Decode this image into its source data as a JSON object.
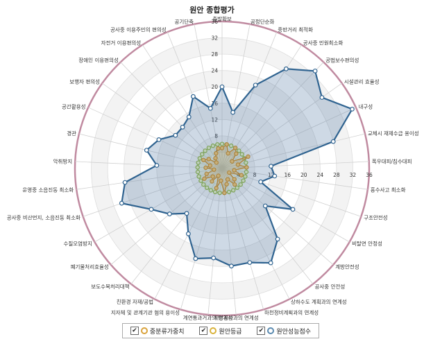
{
  "chart_data": {
    "type": "radar",
    "title": "원안 종합평가",
    "scale": {
      "max": 36,
      "step": 4,
      "ticks": [
        "4",
        "8",
        "12",
        "16",
        "20",
        "24",
        "28",
        "32",
        "36"
      ]
    },
    "axes": [
      "출발확보",
      "공정단순화",
      "중반거리 최적화",
      "공사중 민원최소화",
      "공법보수편의성",
      "시설관리 효율성",
      "내구성",
      "교체시 재제수급 용이성",
      "폭우대피/침수대피",
      "홍수사고 최소화",
      "구조안전성",
      "비탈면 안정성",
      "계방안전성",
      "공사중 안전성",
      "상하수도 계획과의 연계성",
      "하천정비계획과의 연계성",
      "제방공사과의 연계성",
      "계연통과거과의 연계성",
      "지자체 및 관계기관 협의 용이성",
      "친환경 자재/공법",
      "보도수목처리대책",
      "폐기물처리효율성",
      "수질오염방지",
      "공사중 비산먼지, 소음진동 최소화",
      "운영중 소음진동 최소화",
      "악취방지",
      "경관",
      "공간활용성",
      "보행자 편의성",
      "장애인 이용편의성",
      "자전거 이용편의성",
      "공사중 이용주민의 편의성",
      "공기단축"
    ],
    "series": [
      {
        "name": "중분류가중치",
        "color": "#8db33a",
        "values": [
          6,
          6,
          6,
          6,
          6,
          6,
          6,
          6,
          6,
          6,
          6,
          6,
          6,
          6,
          6,
          6,
          6,
          6,
          6,
          6,
          6,
          6,
          6,
          6,
          6,
          6,
          6,
          6,
          6,
          6,
          6,
          6,
          6
        ]
      },
      {
        "name": "원안등급",
        "color": "#d08b1c",
        "values": [
          5,
          6,
          4,
          6,
          5,
          3,
          7,
          4,
          6,
          3,
          5,
          2,
          4,
          5,
          3,
          4,
          6,
          3,
          5,
          2,
          4,
          3,
          5,
          4,
          2,
          4,
          3,
          5,
          4,
          2,
          3,
          4,
          5
        ]
      },
      {
        "name": "원안성능점수",
        "color": "#2f6390",
        "values": [
          20,
          14,
          22,
          29,
          33,
          30,
          35,
          28,
          12,
          13,
          10,
          20,
          14,
          22,
          26,
          24,
          24,
          22,
          23,
          18,
          14,
          17,
          20,
          26,
          24,
          16,
          19,
          17,
          14,
          14,
          15,
          19,
          15
        ]
      }
    ]
  },
  "legend": [
    {
      "check": "✔",
      "label": "중분류가중치",
      "color": "#8db33a"
    },
    {
      "check": "✔",
      "label": "원안등급",
      "color": "#d08b1c"
    },
    {
      "check": "✔",
      "label": "원안성능점수",
      "color": "#2f6390"
    }
  ]
}
